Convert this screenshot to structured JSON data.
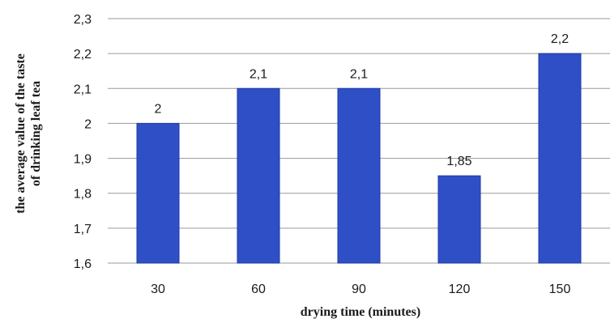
{
  "chart_data": {
    "type": "bar",
    "categories": [
      "30",
      "60",
      "90",
      "120",
      "150"
    ],
    "values": [
      2.0,
      2.1,
      2.1,
      1.85,
      2.2
    ],
    "data_labels": [
      "2",
      "2,1",
      "2,1",
      "1,85",
      "2,2"
    ],
    "xlabel": "drying time (minutes)",
    "ylabel": [
      "the average value of the taste",
      "of drinking leaf tea"
    ],
    "ylim": [
      1.6,
      2.3
    ],
    "yticks": [
      1.6,
      1.7,
      1.8,
      1.9,
      2.0,
      2.1,
      2.2,
      2.3
    ],
    "ytick_labels": [
      "1,6",
      "1,7",
      "1,8",
      "1,9",
      "2",
      "2,1",
      "2,2",
      "2,3"
    ],
    "grid": true,
    "colors": {
      "bar": "#2f4fc6",
      "bar_edge": "#1f3aa8",
      "grid": "#9a9a9a"
    }
  }
}
